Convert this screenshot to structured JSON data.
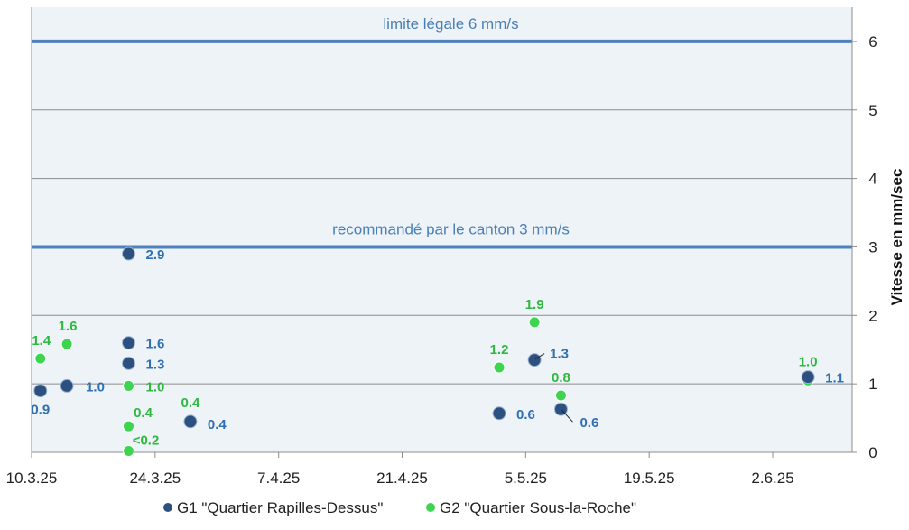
{
  "chart_data": {
    "type": "scatter",
    "title": "",
    "xlabel": "",
    "ylabel": "Vitesse en mm/sec",
    "x_axis": {
      "type": "date",
      "range": [
        "2025-03-10",
        "2025-06-11"
      ],
      "tick_values": [
        "2025-03-10",
        "2025-03-24",
        "2025-04-07",
        "2025-04-21",
        "2025-05-05",
        "2025-05-19",
        "2025-06-02"
      ],
      "tick_labels": [
        "10.3.25",
        "24.3.25",
        "7.4.25",
        "21.4.25",
        "5.5.25",
        "19.5.25",
        "2.6.25"
      ]
    },
    "y_axis": {
      "range": [
        0,
        6.5
      ],
      "side": "right",
      "ticks": [
        0,
        1,
        2,
        3,
        4,
        5,
        6
      ],
      "tick_labels": [
        "0",
        "1",
        "2",
        "3",
        "4",
        "5",
        "6"
      ],
      "grid": true
    },
    "reference_lines": [
      {
        "y": 6,
        "label": "limite légale 6 mm/s",
        "color": "#4f81bd"
      },
      {
        "y": 3,
        "label": "recommandé par le canton 3 mm/s",
        "color": "#4f81bd"
      }
    ],
    "legend": {
      "position": "bottom"
    },
    "series": [
      {
        "name": "G1 \"Quartier Rapilles-Dessus\"",
        "color": "#2c5180",
        "label_color": "#2f6fb3",
        "points": [
          {
            "x": "2025-03-11",
            "y": 0.9,
            "label": "0.9"
          },
          {
            "x": "2025-03-14",
            "y": 0.97,
            "label": "1.0"
          },
          {
            "x": "2025-03-21",
            "y": 2.9,
            "label": "2.9"
          },
          {
            "x": "2025-03-21",
            "y": 1.6,
            "label": "1.6"
          },
          {
            "x": "2025-03-21",
            "y": 1.3,
            "label": "1.3"
          },
          {
            "x": "2025-03-28",
            "y": 0.45,
            "label": "0.4"
          },
          {
            "x": "2025-05-02",
            "y": 0.57,
            "label": "0.6"
          },
          {
            "x": "2025-05-06",
            "y": 1.35,
            "label": "1.3"
          },
          {
            "x": "2025-05-09",
            "y": 0.63,
            "label": "0.6"
          },
          {
            "x": "2025-06-06",
            "y": 1.1,
            "label": "1.1"
          }
        ]
      },
      {
        "name": "G2 \"Quartier Sous-la-Roche\"",
        "color": "#3ed44f",
        "label_color": "#2fb83f",
        "points": [
          {
            "x": "2025-03-11",
            "y": 1.37,
            "label": "1.4"
          },
          {
            "x": "2025-03-14",
            "y": 1.58,
            "label": "1.6"
          },
          {
            "x": "2025-03-21",
            "y": 0.97,
            "label": "1.0"
          },
          {
            "x": "2025-03-21",
            "y": 0.38,
            "label": "0.4"
          },
          {
            "x": "2025-03-21",
            "y": 0.02,
            "label": "<0.2"
          },
          {
            "x": "2025-03-28",
            "y": 0.45,
            "label": "0.4"
          },
          {
            "x": "2025-05-02",
            "y": 1.24,
            "label": "1.2"
          },
          {
            "x": "2025-05-06",
            "y": 1.9,
            "label": "1.9"
          },
          {
            "x": "2025-05-09",
            "y": 0.83,
            "label": "0.8"
          },
          {
            "x": "2025-06-06",
            "y": 1.05,
            "label": "1.0"
          }
        ]
      }
    ]
  }
}
